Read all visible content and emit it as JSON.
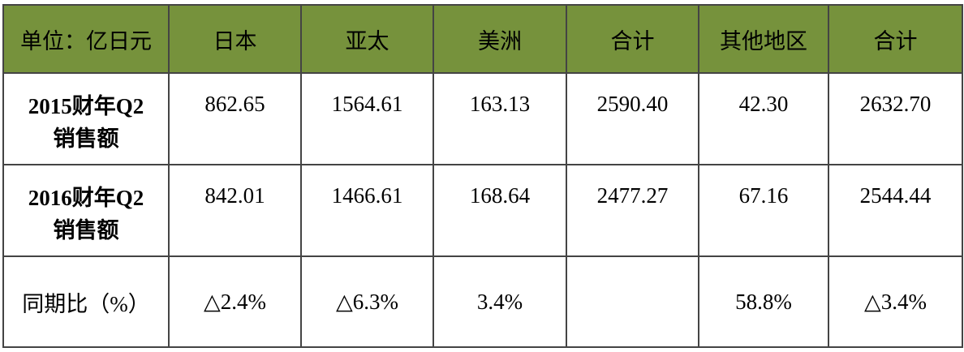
{
  "header": [
    "单位：亿日元",
    "日本",
    "亚太",
    "美洲",
    "合计",
    "其他地区",
    "合计"
  ],
  "colors": {
    "header_bg": "#76923c",
    "border": "#444444"
  },
  "rows": [
    {
      "label_line1": "2015财年Q2",
      "label_line2": "销售额",
      "values": [
        "862.65",
        "1564.61",
        "163.13",
        "2590.40",
        "42.30",
        "2632.70"
      ]
    },
    {
      "label_line1": "2016财年Q2",
      "label_line2": "销售额",
      "values": [
        "842.01",
        "1466.61",
        "168.64",
        "2477.27",
        "67.16",
        "2544.44"
      ]
    },
    {
      "label_line1": "同期比（%）",
      "values": [
        "△2.4%",
        "△6.3%",
        "3.4%",
        "",
        "58.8%",
        "△3.4%"
      ]
    }
  ]
}
